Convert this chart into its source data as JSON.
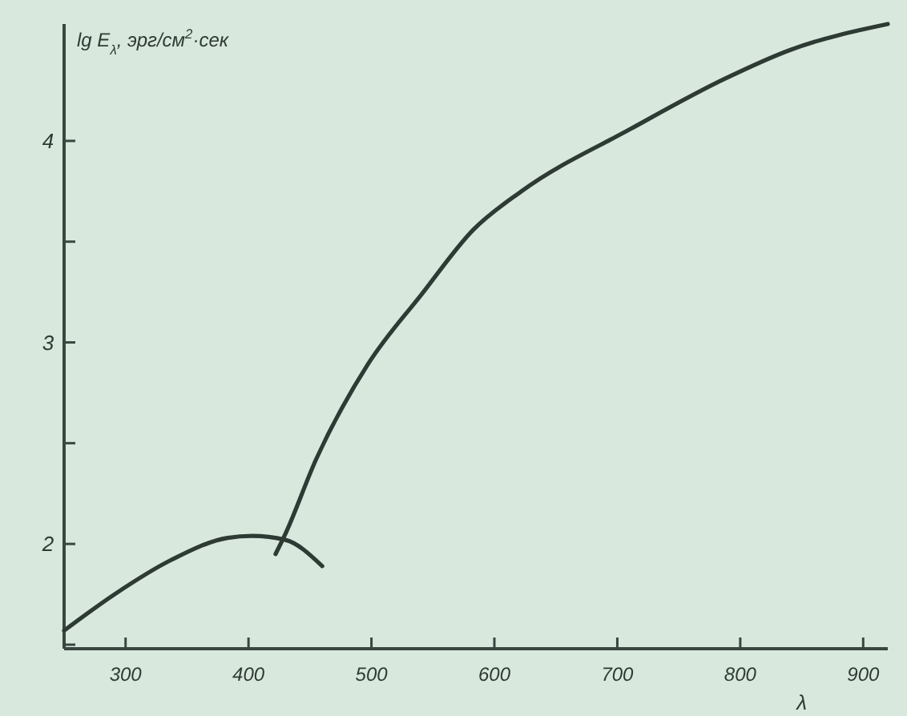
{
  "chart_data": {
    "type": "line",
    "ylabel": "lg E$_{λ}$, эрг/см$^{2}$·сек",
    "xlabel": "λ",
    "xlim": [
      250,
      920
    ],
    "ylim": [
      1.48,
      4.58
    ],
    "xticks": [
      300,
      400,
      500,
      600,
      700,
      800,
      900
    ],
    "yticks": [
      {
        "value": 1.5,
        "label": null
      },
      2,
      {
        "value": 2.5,
        "label": null
      },
      3,
      {
        "value": 3.5,
        "label": null
      },
      4
    ],
    "series": [
      {
        "color": "#2e3a34",
        "x": [
          250,
          291,
          337,
          383,
          403,
          430,
          460
        ],
        "values": [
          1.57,
          1.75,
          1.92,
          2.03,
          2.04,
          2.02,
          1.89
        ]
      },
      {
        "color": "#2e3a34",
        "x": [
          422,
          430,
          455,
          497,
          541,
          583,
          622,
          711,
          788,
          840,
          920
        ],
        "values": [
          1.95,
          2.05,
          2.42,
          2.89,
          3.24,
          3.56,
          3.75,
          4.06,
          4.31,
          4.45,
          4.58
        ]
      }
    ],
    "marker": "none",
    "line_style": "solid",
    "grid": false
  }
}
